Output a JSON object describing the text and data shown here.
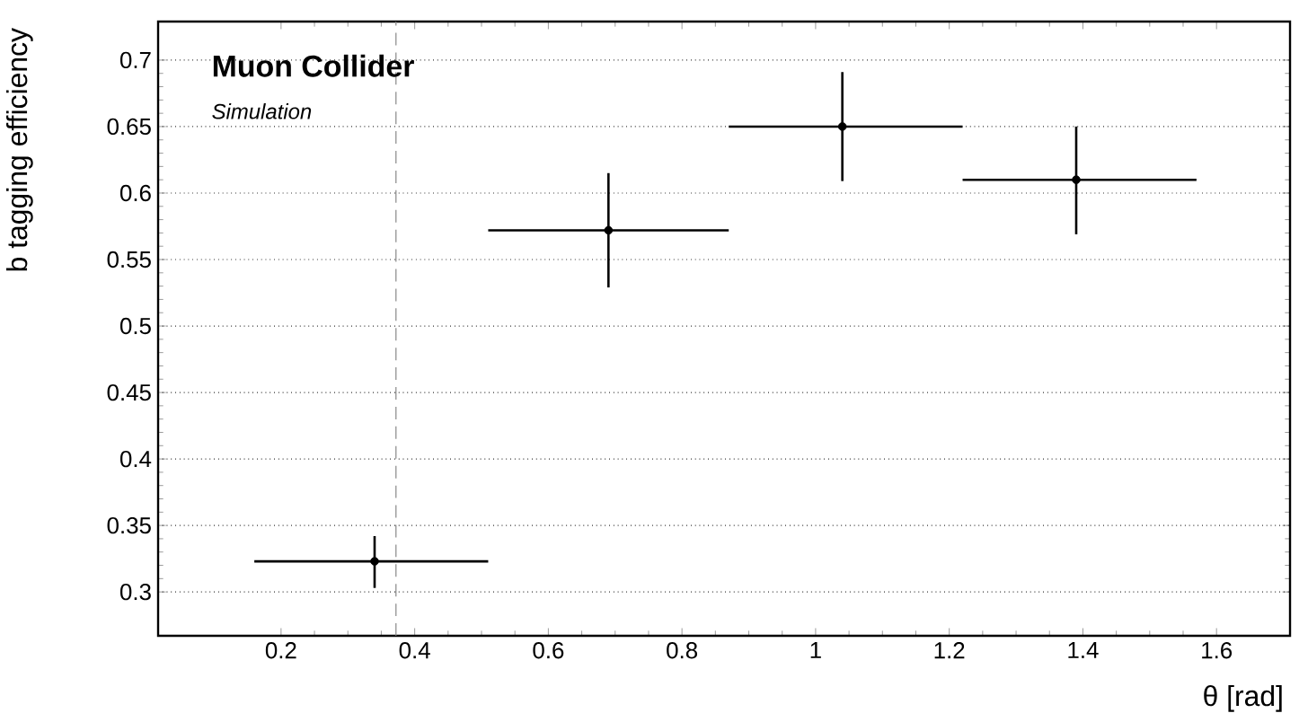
{
  "chart_data": {
    "type": "scatter",
    "xlabel": "θ [rad]",
    "ylabel": "b tagging efficiency",
    "annotations": [
      "Muon Collider",
      "Simulation"
    ],
    "x": [
      0.34,
      0.69,
      1.04,
      1.39
    ],
    "series": [
      {
        "color": "#000000",
        "values": [
          0.323,
          0.572,
          0.65,
          0.61
        ],
        "errors": [
          [
            0.303,
            0.342
          ],
          [
            0.529,
            0.615
          ],
          [
            0.609,
            0.691
          ],
          [
            0.569,
            0.65
          ]
        ],
        "xerrors": [
          [
            0.16,
            0.51
          ],
          [
            0.51,
            0.87
          ],
          [
            0.87,
            1.22
          ],
          [
            1.22,
            1.57
          ]
        ]
      }
    ],
    "xlim": [
      0.016,
      1.71
    ],
    "ylim": [
      0.267,
      0.729
    ],
    "xticks": [
      0.2,
      0.4,
      0.6,
      0.8,
      1,
      1.2,
      1.4,
      1.6
    ],
    "yticks": [
      0.3,
      0.35,
      0.4,
      0.45,
      0.5,
      0.55,
      0.6,
      0.65,
      0.7
    ],
    "grid": "y",
    "ref_lines": [
      {
        "axis": "x",
        "value": 0.372,
        "color": "#888888",
        "line_style": "dashed"
      }
    ]
  }
}
